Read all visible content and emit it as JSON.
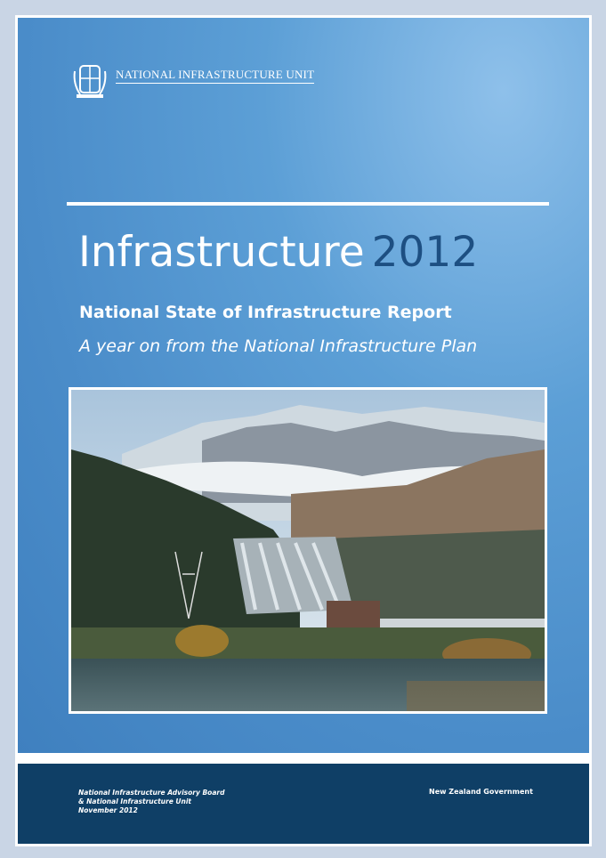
{
  "header": {
    "unit": "NATIONAL INFRASTRUCTURE UNIT"
  },
  "title": {
    "main": "Infrastructure",
    "year": "2012"
  },
  "subtitle": "National State of Infrastructure Report",
  "tagline": "A year on from the National Infrastructure Plan",
  "footer": {
    "lines": [
      "National Infrastructure Advisory Board",
      "& National Infrastructure Unit",
      "November 2012"
    ],
    "government": "New Zealand Government"
  }
}
